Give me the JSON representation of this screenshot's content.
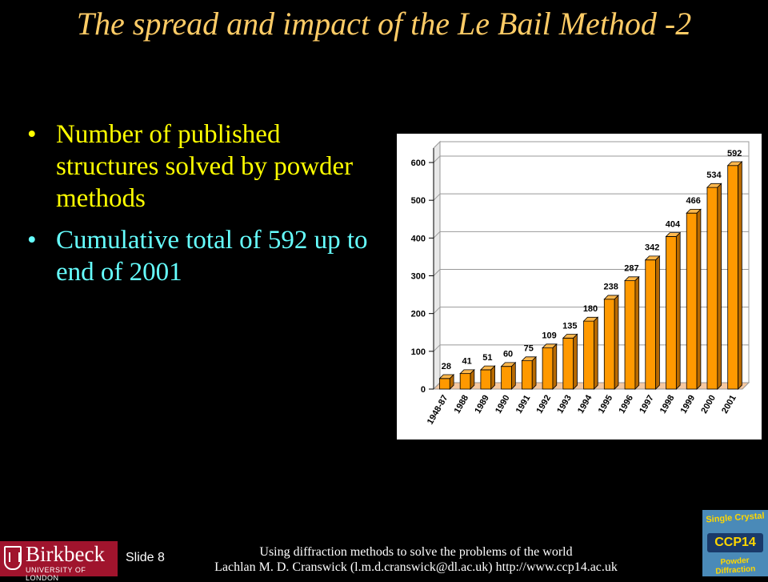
{
  "title": "The spread and impact of the Le Bail Method -2",
  "bullets": [
    {
      "marker": "•",
      "text": "Number of published structures solved by powder methods",
      "color": "#FFFF00"
    },
    {
      "marker": "•",
      "text": "Cumulative total of 592 up to end of 2001",
      "color": "#66FFFF"
    }
  ],
  "chart_data": {
    "type": "bar",
    "categories": [
      "1948-87",
      "1988",
      "1989",
      "1990",
      "1991",
      "1992",
      "1993",
      "1994",
      "1995",
      "1996",
      "1997",
      "1998",
      "1999",
      "2000",
      "2001"
    ],
    "values": [
      28,
      41,
      51,
      60,
      75,
      109,
      135,
      180,
      238,
      287,
      342,
      404,
      466,
      534,
      592
    ],
    "yticks": [
      0,
      100,
      200,
      300,
      400,
      500,
      600
    ],
    "ylim": [
      0,
      640
    ],
    "grid": true,
    "bar_color": "#FF9900",
    "title": "",
    "xlabel": "",
    "ylabel": ""
  },
  "footer": {
    "logo_name": "Birkbeck",
    "logo_sub": "UNIVERSITY OF LONDON",
    "slide_number": "Slide 8",
    "line1": "Using diffraction methods to solve the problems of the world",
    "line2": "Lachlan M. D. Cranswick (l.m.d.cranswick@dl.ac.uk) http://www.ccp14.ac.uk",
    "badge_top": "Single Crystal",
    "badge_mid": "CCP14",
    "badge_bot": "Powder Diffraction"
  }
}
